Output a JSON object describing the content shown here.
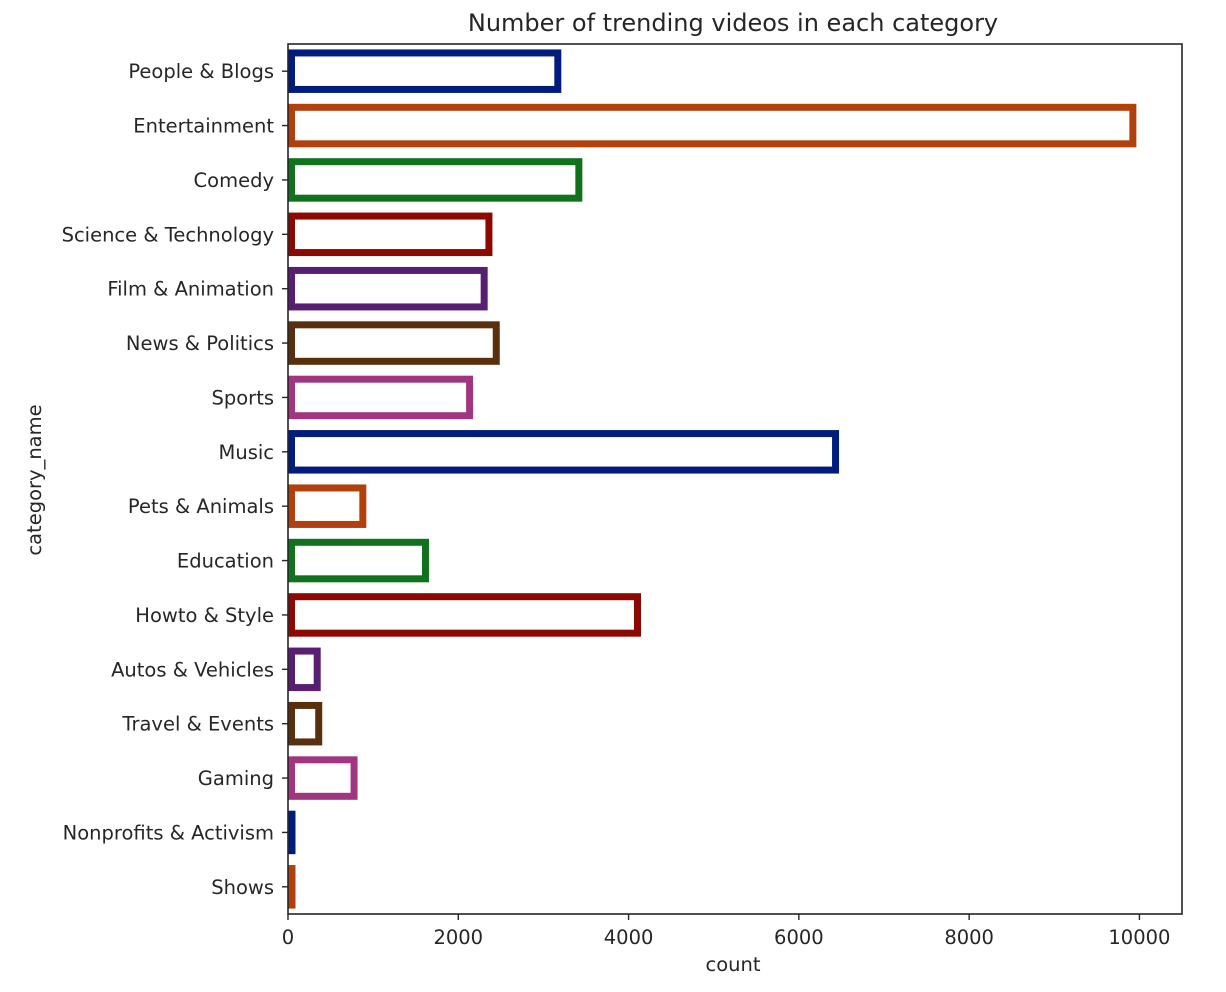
{
  "chart_data": {
    "type": "bar",
    "orientation": "horizontal",
    "title": "Number of trending videos in each category",
    "xlabel": "count",
    "ylabel": "category_name",
    "xlim": [
      0,
      10500
    ],
    "xticks": [
      0,
      2000,
      4000,
      6000,
      8000,
      10000
    ],
    "grid": false,
    "legend": "none",
    "categories": [
      "People & Blogs",
      "Entertainment",
      "Comedy",
      "Science & Technology",
      "Film & Animation",
      "News & Politics",
      "Sports",
      "Music",
      "Pets & Animals",
      "Education",
      "Howto & Style",
      "Autos & Vehicles",
      "Travel & Events",
      "Gaming",
      "Nonprofits & Activism",
      "Shows"
    ],
    "values": [
      3210,
      9964,
      3457,
      2401,
      2345,
      2487,
      2174,
      6472,
      920,
      1656,
      4146,
      384,
      402,
      817,
      57,
      57
    ],
    "colors": [
      "#001c7f",
      "#b1400d",
      "#12711c",
      "#8c0800",
      "#591e71",
      "#592f0d",
      "#a23582",
      "#001c7f",
      "#b1400d",
      "#12711c",
      "#8c0800",
      "#591e71",
      "#592f0d",
      "#a23582",
      "#001c7f",
      "#b1400d"
    ]
  }
}
